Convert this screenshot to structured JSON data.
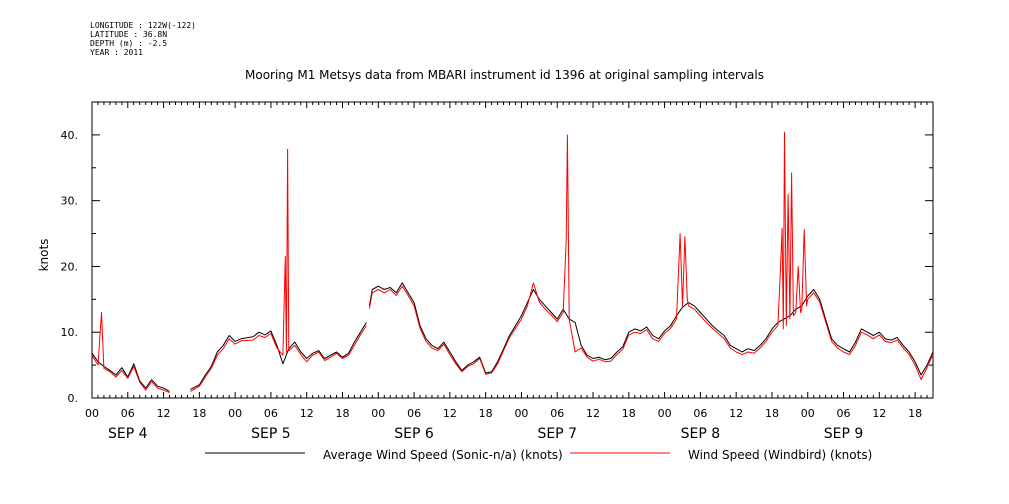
{
  "meta": {
    "longitude": "LONGITUDE : 122W(-122)",
    "latitude": "LATITUDE : 36.8N",
    "depth": "DEPTH (m) : -2.5",
    "year": "YEAR : 2011"
  },
  "chart_data": {
    "type": "line",
    "title": "Mooring M1 Metsys data from MBARI instrument id 1396 at original sampling intervals",
    "ylabel": "knots",
    "xlabel": "",
    "ylim": [
      0,
      45
    ],
    "yticks": [
      0.0,
      10.0,
      20.0,
      30.0,
      40.0
    ],
    "ytick_labels": [
      "0.",
      "10.",
      "20.",
      "30.",
      "40."
    ],
    "xlim_hours": [
      0,
      141
    ],
    "hour_labels": [
      "00",
      "06",
      "12",
      "18",
      "00",
      "06",
      "12",
      "18",
      "00",
      "06",
      "12",
      "18",
      "00",
      "06",
      "12",
      "18",
      "00",
      "06",
      "12",
      "18",
      "00",
      "06",
      "12",
      "18"
    ],
    "day_labels": [
      "SEP 4",
      "SEP 5",
      "SEP 6",
      "SEP 7",
      "SEP 8",
      "SEP 9"
    ],
    "legend_placement": "bottom",
    "grid": false,
    "series": [
      {
        "name": "Average Wind Speed (Sonic-n/a) (knots)",
        "color": "#000000",
        "points": [
          [
            0,
            6.8
          ],
          [
            1,
            5.5
          ],
          [
            2,
            4.8
          ],
          [
            3,
            4.2
          ],
          [
            4,
            3.5
          ],
          [
            5,
            4.6
          ],
          [
            6,
            3.2
          ],
          [
            7,
            5.2
          ],
          [
            8,
            2.6
          ],
          [
            9,
            1.5
          ],
          [
            10,
            2.8
          ],
          [
            11,
            1.8
          ],
          [
            12,
            1.5
          ],
          [
            13,
            1.0
          ],
          null,
          [
            16.5,
            1.3
          ],
          [
            18,
            2.0
          ],
          [
            19,
            3.5
          ],
          [
            20,
            4.8
          ],
          [
            21,
            7.0
          ],
          [
            22,
            8.0
          ],
          [
            23,
            9.5
          ],
          [
            24,
            8.6
          ],
          [
            25,
            9.0
          ],
          [
            27,
            9.3
          ],
          [
            28,
            10.0
          ],
          [
            29,
            9.6
          ],
          [
            30,
            10.2
          ],
          [
            31,
            8.0
          ],
          [
            32,
            5.2
          ],
          [
            33,
            7.5
          ],
          [
            34,
            8.5
          ],
          [
            35,
            7.0
          ],
          [
            36,
            6.0
          ],
          [
            37,
            6.8
          ],
          [
            38,
            7.2
          ],
          [
            39,
            6.0
          ],
          [
            40,
            6.5
          ],
          [
            41,
            7.0
          ],
          [
            42,
            6.2
          ],
          [
            43,
            6.8
          ],
          [
            44,
            8.5
          ],
          [
            45,
            10.0
          ],
          [
            46,
            11.5
          ],
          null,
          [
            46.5,
            14.0
          ],
          [
            47,
            16.5
          ],
          [
            48,
            17.0
          ],
          [
            49,
            16.5
          ],
          [
            50,
            16.8
          ],
          [
            51,
            16.0
          ],
          [
            52,
            17.5
          ],
          [
            53,
            16.0
          ],
          [
            54,
            14.5
          ],
          [
            55,
            11.0
          ],
          [
            56,
            9.0
          ],
          [
            57,
            8.0
          ],
          [
            58,
            7.5
          ],
          [
            59,
            8.5
          ],
          [
            60,
            7.0
          ],
          [
            61,
            5.5
          ],
          [
            62,
            4.2
          ],
          [
            63,
            5.0
          ],
          [
            64,
            5.5
          ],
          [
            65,
            6.2
          ],
          [
            66,
            3.8
          ],
          [
            67,
            4.0
          ],
          [
            68,
            5.5
          ],
          [
            69,
            7.5
          ],
          [
            70,
            9.5
          ],
          [
            71,
            11.0
          ],
          [
            72,
            12.5
          ],
          [
            73,
            14.5
          ],
          [
            74,
            16.5
          ],
          [
            75,
            15.0
          ],
          [
            76,
            14.0
          ],
          [
            77,
            13.0
          ],
          [
            78,
            12.0
          ],
          [
            79,
            13.5
          ],
          [
            80,
            12.0
          ],
          [
            81,
            11.5
          ],
          [
            82,
            8.0
          ],
          [
            83,
            6.5
          ],
          [
            84,
            6.0
          ],
          [
            85,
            6.2
          ],
          [
            86,
            5.8
          ],
          [
            87,
            6.0
          ],
          [
            88,
            7.0
          ],
          [
            89,
            7.8
          ],
          [
            90,
            10.0
          ],
          [
            91,
            10.5
          ],
          [
            92,
            10.2
          ],
          [
            93,
            10.8
          ],
          [
            94,
            9.5
          ],
          [
            95,
            9.0
          ],
          [
            96,
            10.2
          ],
          [
            97,
            11.0
          ],
          [
            98,
            12.5
          ],
          [
            99,
            13.8
          ],
          [
            100,
            14.5
          ],
          [
            101,
            14.0
          ],
          [
            102,
            13.0
          ],
          [
            103,
            12.0
          ],
          [
            104,
            11.0
          ],
          [
            105,
            10.2
          ],
          [
            106,
            9.5
          ],
          [
            107,
            8.0
          ],
          [
            108,
            7.5
          ],
          [
            109,
            7.0
          ],
          [
            110,
            7.5
          ],
          [
            111,
            7.2
          ],
          [
            112,
            8.0
          ],
          [
            113,
            9.0
          ],
          [
            114,
            10.5
          ],
          [
            115,
            11.5
          ],
          [
            116,
            12.0
          ],
          [
            117,
            12.5
          ],
          [
            118,
            13.5
          ],
          [
            119,
            14.0
          ],
          [
            120,
            15.5
          ],
          [
            121,
            16.5
          ],
          [
            122,
            15.0
          ],
          [
            123,
            12.0
          ],
          [
            124,
            9.0
          ],
          [
            125,
            8.0
          ],
          [
            126,
            7.5
          ],
          [
            127,
            7.0
          ],
          [
            128,
            8.5
          ],
          [
            129,
            10.5
          ],
          [
            130,
            10.0
          ],
          [
            131,
            9.5
          ],
          [
            132,
            10.0
          ],
          [
            133,
            9.0
          ],
          [
            134,
            8.8
          ],
          [
            135,
            9.2
          ],
          [
            136,
            8.0
          ],
          [
            137,
            7.0
          ],
          [
            138,
            5.5
          ],
          [
            139,
            3.5
          ],
          [
            140,
            5.0
          ],
          [
            141,
            7.0
          ]
        ]
      },
      {
        "name": "Wind Speed (Windbird) (knots)",
        "color": "#ff0000",
        "points": [
          [
            0,
            6.5
          ],
          [
            1,
            5.0
          ],
          [
            1.6,
            13.0
          ],
          [
            2,
            4.5
          ],
          [
            3,
            4.0
          ],
          [
            4,
            3.2
          ],
          [
            5,
            4.2
          ],
          [
            6,
            3.0
          ],
          [
            7,
            4.8
          ],
          [
            8,
            2.4
          ],
          [
            9,
            1.2
          ],
          [
            10,
            2.5
          ],
          [
            11,
            1.5
          ],
          [
            12,
            1.2
          ],
          [
            13,
            0.8
          ],
          null,
          [
            16.5,
            1.0
          ],
          [
            18,
            1.8
          ],
          [
            19,
            3.2
          ],
          [
            20,
            4.5
          ],
          [
            21,
            6.5
          ],
          [
            22,
            7.5
          ],
          [
            23,
            9.0
          ],
          [
            24,
            8.2
          ],
          [
            25,
            8.7
          ],
          [
            27,
            8.8
          ],
          [
            28,
            9.5
          ],
          [
            29,
            9.2
          ],
          [
            30,
            9.8
          ],
          [
            31,
            7.6
          ],
          [
            32,
            6.5
          ],
          [
            32.4,
            21.5
          ],
          [
            32.6,
            7.0
          ],
          [
            32.8,
            37.8
          ],
          [
            33,
            7.2
          ],
          [
            34,
            8.0
          ],
          [
            35,
            6.6
          ],
          [
            36,
            5.5
          ],
          [
            37,
            6.5
          ],
          [
            38,
            7.0
          ],
          [
            39,
            5.7
          ],
          [
            40,
            6.2
          ],
          [
            41,
            6.8
          ],
          [
            42,
            6.0
          ],
          [
            43,
            6.5
          ],
          [
            44,
            8.0
          ],
          [
            45,
            9.6
          ],
          [
            46,
            11.0
          ],
          null,
          [
            46.5,
            13.6
          ],
          [
            47,
            16.0
          ],
          [
            48,
            16.5
          ],
          [
            49,
            16.0
          ],
          [
            50,
            16.5
          ],
          [
            51,
            15.6
          ],
          [
            52,
            17.0
          ],
          [
            53,
            15.6
          ],
          [
            54,
            14.0
          ],
          [
            55,
            10.6
          ],
          [
            56,
            8.6
          ],
          [
            57,
            7.6
          ],
          [
            58,
            7.2
          ],
          [
            59,
            8.2
          ],
          [
            60,
            6.6
          ],
          [
            61,
            5.2
          ],
          [
            62,
            4.0
          ],
          [
            63,
            4.8
          ],
          [
            64,
            5.2
          ],
          [
            65,
            6.0
          ],
          [
            66,
            3.6
          ],
          [
            67,
            3.8
          ],
          [
            68,
            5.2
          ],
          [
            69,
            7.2
          ],
          [
            70,
            9.2
          ],
          [
            71,
            10.6
          ],
          [
            72,
            12.0
          ],
          [
            73,
            14.0
          ],
          [
            74,
            17.5
          ],
          [
            75,
            14.6
          ],
          [
            76,
            13.5
          ],
          [
            77,
            12.6
          ],
          [
            78,
            11.6
          ],
          [
            79,
            13.0
          ],
          [
            79.5,
            24.0
          ],
          [
            79.7,
            40.0
          ],
          [
            80,
            12.0
          ],
          [
            81,
            7.0
          ],
          [
            82,
            7.6
          ],
          [
            83,
            6.2
          ],
          [
            84,
            5.6
          ],
          [
            85,
            5.9
          ],
          [
            86,
            5.5
          ],
          [
            87,
            5.6
          ],
          [
            88,
            6.6
          ],
          [
            89,
            7.4
          ],
          [
            90,
            9.6
          ],
          [
            91,
            10.0
          ],
          [
            92,
            9.8
          ],
          [
            93,
            10.4
          ],
          [
            94,
            9.0
          ],
          [
            95,
            8.6
          ],
          [
            96,
            9.8
          ],
          [
            97,
            10.6
          ],
          [
            98,
            12.0
          ],
          [
            98.6,
            25.0
          ],
          [
            99,
            14.0
          ],
          [
            99.4,
            24.5
          ],
          [
            99.8,
            15.0
          ],
          [
            100,
            14.0
          ],
          [
            101,
            13.5
          ],
          [
            102,
            12.5
          ],
          [
            103,
            11.5
          ],
          [
            104,
            10.6
          ],
          [
            105,
            9.8
          ],
          [
            106,
            9.0
          ],
          [
            107,
            7.6
          ],
          [
            108,
            7.0
          ],
          [
            109,
            6.6
          ],
          [
            110,
            7.0
          ],
          [
            111,
            6.8
          ],
          [
            112,
            7.6
          ],
          [
            113,
            8.6
          ],
          [
            114,
            10.0
          ],
          [
            115,
            11.0
          ],
          [
            115.4,
            19.0
          ],
          [
            115.7,
            25.8
          ],
          [
            115.9,
            10.5
          ],
          [
            116.1,
            40.4
          ],
          [
            116.4,
            11.0
          ],
          [
            116.7,
            31.0
          ],
          [
            117,
            12.0
          ],
          [
            117.3,
            34.2
          ],
          [
            117.6,
            12.5
          ],
          [
            118,
            13.0
          ],
          [
            118.4,
            20.0
          ],
          [
            118.8,
            13.0
          ],
          [
            119,
            13.5
          ],
          [
            119.4,
            25.6
          ],
          [
            119.8,
            14.0
          ],
          [
            120,
            15.0
          ],
          [
            121,
            16.0
          ],
          [
            122,
            14.6
          ],
          [
            123,
            11.6
          ],
          [
            124,
            8.6
          ],
          [
            125,
            7.6
          ],
          [
            126,
            7.0
          ],
          [
            127,
            6.6
          ],
          [
            128,
            8.0
          ],
          [
            129,
            10.0
          ],
          [
            130,
            9.6
          ],
          [
            131,
            9.0
          ],
          [
            132,
            9.6
          ],
          [
            133,
            8.6
          ],
          [
            134,
            8.4
          ],
          [
            135,
            8.8
          ],
          [
            136,
            7.6
          ],
          [
            137,
            6.6
          ],
          [
            138,
            5.0
          ],
          [
            139,
            2.8
          ],
          [
            140,
            4.6
          ],
          [
            141,
            6.6
          ]
        ]
      }
    ]
  }
}
